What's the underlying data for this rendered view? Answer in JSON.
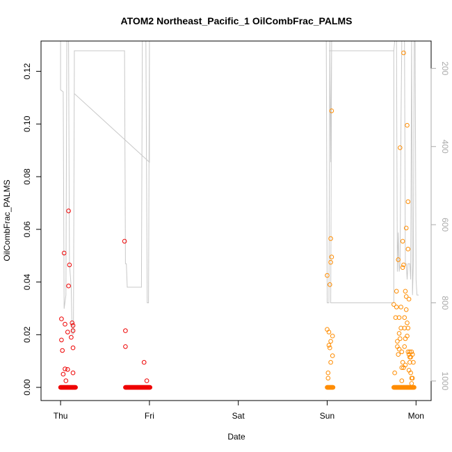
{
  "chart_data": {
    "type": "scatter",
    "title": "ATOM2 Northeast_Pacific_1 OilCombFrac_PALMS",
    "xlabel": "Date",
    "ylabel": "OilCombFrac_PALMS",
    "x_ticks": [
      {
        "label": "Thu",
        "day": 0
      },
      {
        "label": "Fri",
        "day": 1
      },
      {
        "label": "Sat",
        "day": 2
      },
      {
        "label": "Sun",
        "day": 3
      },
      {
        "label": "Mon",
        "day": 4
      }
    ],
    "xlim_days": [
      -0.22,
      4.17
    ],
    "ylim": [
      -0.005,
      0.1315
    ],
    "y_ticks": [
      0.0,
      0.02,
      0.04,
      0.06,
      0.08,
      0.1,
      0.12
    ],
    "y_tick_labels": [
      "0.00",
      "0.02",
      "0.04",
      "0.06",
      "0.08",
      "0.10",
      "0.12"
    ],
    "y2_label": "",
    "y2_ticks": [
      200,
      400,
      600,
      800,
      1000
    ],
    "y2_tick_labels": [
      "200",
      "400",
      "600",
      "800",
      "1000"
    ],
    "y2lim": [
      130,
      1050
    ],
    "colors": {
      "early": "#ee0000",
      "late": "#ff8c00",
      "altitude": "#c8c8c8"
    },
    "altitude_series": {
      "name": "",
      "points": [
        [
          0.0,
          130
        ],
        [
          0.0,
          255
        ],
        [
          0.03,
          260
        ],
        [
          0.04,
          815
        ],
        [
          0.06,
          780
        ],
        [
          0.07,
          130
        ],
        [
          0.09,
          130
        ],
        [
          0.1,
          700
        ],
        [
          0.12,
          760
        ],
        [
          0.13,
          880
        ],
        [
          0.145,
          880
        ],
        [
          0.155,
          200
        ],
        [
          0.155,
          155
        ],
        [
          0.72,
          155
        ],
        [
          0.73,
          700
        ],
        [
          0.74,
          700
        ],
        [
          0.75,
          760
        ],
        [
          0.76,
          760
        ],
        [
          0.77,
          760
        ],
        [
          0.78,
          760
        ],
        [
          0.85,
          760
        ],
        [
          0.9,
          760
        ],
        [
          0.91,
          760
        ],
        [
          0.92,
          130
        ],
        [
          0.96,
          130
        ],
        [
          0.975,
          800
        ],
        [
          0.99,
          800
        ],
        [
          1.0,
          130
        ],
        [
          1.0,
          440
        ],
        [
          0.157,
          265
        ],
        [
          1.0,
          440
        ]
      ],
      "points_b": [
        [
          2.99,
          130
        ],
        [
          3.0,
          800
        ],
        [
          3.02,
          800
        ],
        [
          3.03,
          130
        ],
        [
          3.04,
          440
        ],
        [
          3.05,
          130
        ],
        [
          3.04,
          800
        ],
        [
          3.75,
          800
        ],
        [
          3.75,
          155
        ],
        [
          3.02,
          155
        ]
      ],
      "points_c": [
        [
          3.75,
          155
        ],
        [
          3.76,
          130
        ],
        [
          3.78,
          130
        ],
        [
          3.79,
          720
        ],
        [
          3.8,
          620
        ],
        [
          3.81,
          720
        ],
        [
          3.82,
          700
        ],
        [
          3.83,
          350
        ],
        [
          3.84,
          130
        ],
        [
          3.86,
          130
        ],
        [
          3.87,
          130
        ],
        [
          3.88,
          700
        ],
        [
          3.89,
          700
        ],
        [
          3.9,
          740
        ],
        [
          3.91,
          700
        ],
        [
          3.92,
          700
        ],
        [
          3.93,
          700
        ],
        [
          3.94,
          740
        ],
        [
          3.95,
          130
        ],
        [
          3.96,
          780
        ],
        [
          3.97,
          700
        ],
        [
          3.98,
          130
        ],
        [
          3.99,
          130
        ],
        [
          4.0,
          740
        ],
        [
          4.01,
          780
        ],
        [
          4.02,
          780
        ],
        [
          4.03,
          780
        ]
      ]
    },
    "series": [
      {
        "name": "",
        "color": "#ee0000",
        "points": [
          [
            0.01,
            0.026
          ],
          [
            0.01,
            0.018
          ],
          [
            0.02,
            0.014
          ],
          [
            0.03,
            0.005
          ],
          [
            0.04,
            0.051
          ],
          [
            0.05,
            0.007
          ],
          [
            0.05,
            0.024
          ],
          [
            0.06,
            0.0025
          ],
          [
            0.08,
            0.0068
          ],
          [
            0.08,
            0.021
          ],
          [
            0.09,
            0.067
          ],
          [
            0.09,
            0.0385
          ],
          [
            0.1,
            0.0465
          ],
          [
            0.12,
            0.019
          ],
          [
            0.13,
            0.0245
          ],
          [
            0.14,
            0.0235
          ],
          [
            0.14,
            0.0215
          ],
          [
            0.14,
            0.0055
          ],
          [
            0.14,
            0.015
          ],
          [
            0.72,
            0.0555
          ],
          [
            0.73,
            0.0215
          ],
          [
            0.73,
            0.0155
          ],
          [
            0.94,
            0.0095
          ],
          [
            0.97,
            0.0025
          ]
        ],
        "zero_run": [
          [
            0.0,
            0.17
          ],
          [
            0.73,
            1.01
          ]
        ]
      },
      {
        "name": "",
        "color": "#ff8c00",
        "points": [
          [
            3.0,
            0.022
          ],
          [
            3.0,
            0.0425
          ],
          [
            3.01,
            0.0055
          ],
          [
            3.01,
            0.0035
          ],
          [
            3.02,
            0.016
          ],
          [
            3.02,
            0.021
          ],
          [
            3.03,
            0.039
          ],
          [
            3.03,
            0.015
          ],
          [
            3.04,
            0.0095
          ],
          [
            3.04,
            0.0175
          ],
          [
            3.04,
            0.0475
          ],
          [
            3.04,
            0.0565
          ],
          [
            3.05,
            0.0495
          ],
          [
            3.05,
            0.105
          ],
          [
            3.06,
            0.012
          ],
          [
            3.06,
            0.0195
          ],
          [
            3.76,
            0.0055
          ],
          [
            3.77,
            0.0265
          ],
          [
            3.78,
            0.0365
          ],
          [
            3.79,
            0.0175
          ],
          [
            3.8,
            0.0485
          ],
          [
            3.81,
            0.0265
          ],
          [
            3.81,
            0.0205
          ],
          [
            3.82,
            0.091
          ],
          [
            3.83,
            0.0305
          ],
          [
            3.84,
            0.0075
          ],
          [
            3.84,
            0.0135
          ],
          [
            3.85,
            0.0555
          ],
          [
            3.85,
            0.0455
          ],
          [
            3.86,
            0.0465
          ],
          [
            3.86,
            0.127
          ],
          [
            3.87,
            0.0155
          ],
          [
            3.87,
            0.0225
          ],
          [
            3.88,
            0.0085
          ],
          [
            3.88,
            0.0365
          ],
          [
            3.89,
            0.0345
          ],
          [
            3.89,
            0.0605
          ],
          [
            3.9,
            0.0245
          ],
          [
            3.9,
            0.0995
          ],
          [
            3.91,
            0.0705
          ],
          [
            3.91,
            0.0525
          ],
          [
            3.92,
            0.0335
          ],
          [
            3.92,
            0.0125
          ],
          [
            3.93,
            0.0095
          ],
          [
            3.94,
            0.0055
          ],
          [
            3.95,
            0.0015
          ],
          [
            3.95,
            0.0135
          ],
          [
            3.96,
            0.0035
          ],
          [
            3.97,
            0.0095
          ],
          [
            3.82,
            0.0185
          ],
          [
            3.83,
            0.0225
          ],
          [
            3.85,
            0.0095
          ],
          [
            3.87,
            0.0265
          ],
          [
            3.88,
            0.0185
          ],
          [
            3.89,
            0.0295
          ],
          [
            3.9,
            0.0195
          ],
          [
            3.91,
            0.0135
          ],
          [
            3.92,
            0.0065
          ],
          [
            3.93,
            0.0115
          ],
          [
            3.94,
            0.0115
          ],
          [
            3.95,
            0.0035
          ],
          [
            3.8,
            0.0125
          ],
          [
            3.79,
            0.0155
          ],
          [
            3.81,
            0.0145
          ],
          [
            3.84,
            0.0025
          ],
          [
            3.86,
            0.0075
          ],
          [
            3.91,
            0.0225
          ],
          [
            3.93,
            0.0135
          ],
          [
            3.96,
            0.0125
          ],
          [
            3.78,
            0.0305
          ],
          [
            3.75,
            0.0315
          ]
        ],
        "zero_run": [
          [
            3.0,
            3.07
          ],
          [
            3.75,
            3.98
          ]
        ]
      }
    ]
  }
}
